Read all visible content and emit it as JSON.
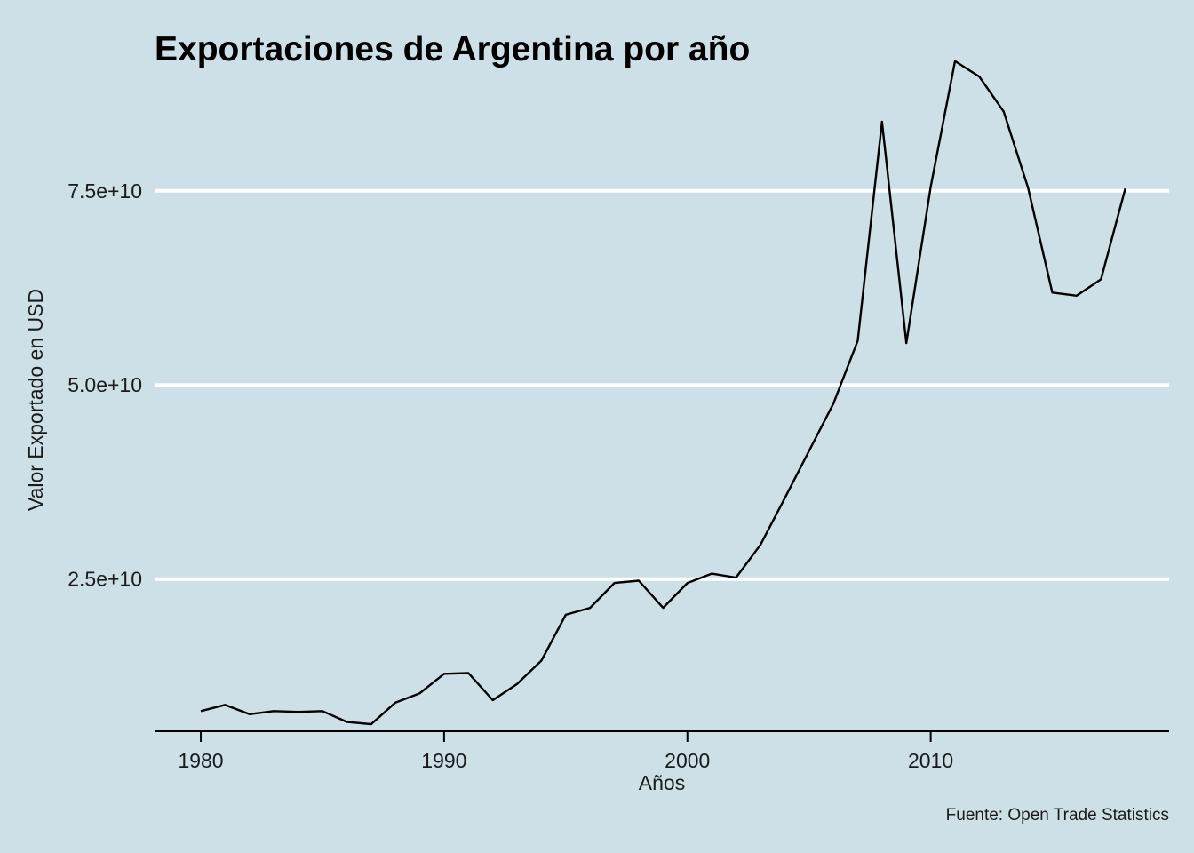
{
  "chart_data": {
    "type": "line",
    "title": "Exportaciones de Argentina por año",
    "xlabel": "Años",
    "ylabel": "Valor Exportado en USD",
    "caption": "Fuente: Open Trade Statistics",
    "xlim": [
      1978.1,
      2019.8
    ],
    "ylim": [
      5400000000,
      95000000000
    ],
    "x_ticks": [
      1980,
      1990,
      2000,
      2010
    ],
    "x_tick_labels": [
      "1980",
      "1990",
      "2000",
      "2010"
    ],
    "y_ticks": [
      25000000000,
      50000000000,
      75000000000
    ],
    "y_tick_labels": [
      "2.5e+10",
      "5.0e+10",
      "7.5e+10"
    ],
    "grid": "horizontal-major",
    "colors": {
      "background": "#cde0e8",
      "grid": "#ffffff",
      "line": "#000000"
    },
    "series": [
      {
        "x": [
          1980,
          1981,
          1982,
          1983,
          1984,
          1985,
          1986,
          1987,
          1988,
          1989,
          1990,
          1991,
          1992,
          1993,
          1994,
          1995,
          1996,
          1997,
          1998,
          1999,
          2000,
          2001,
          2002,
          2003,
          2004,
          2005,
          2006,
          2007,
          2008,
          2009,
          2010,
          2011,
          2012,
          2013,
          2014,
          2015,
          2016,
          2017,
          2018
        ],
        "values": [
          8000000000,
          8800000000,
          7600000000,
          8000000000,
          7900000000,
          8000000000,
          6600000000,
          6300000000,
          9100000000,
          10300000000,
          12800000000,
          12900000000,
          9400000000,
          11500000000,
          14500000000,
          20400000000,
          21300000000,
          24500000000,
          24800000000,
          21300000000,
          24500000000,
          25700000000,
          25200000000,
          29400000000,
          35400000000,
          41500000000,
          47600000000,
          55700000000,
          83900000000,
          55400000000,
          75500000000,
          91700000000,
          89700000000,
          85200000000,
          75400000000,
          61900000000,
          61500000000,
          63600000000,
          75300000000
        ]
      }
    ]
  }
}
